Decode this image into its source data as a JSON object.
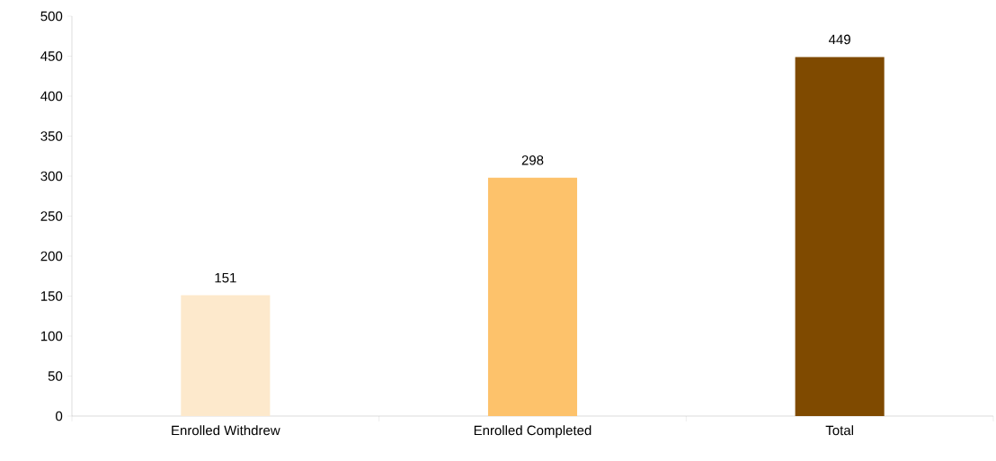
{
  "chart_data": {
    "type": "bar",
    "categories": [
      "Enrolled Withdrew",
      "Enrolled Completed",
      "Total"
    ],
    "values": [
      151,
      298,
      449
    ],
    "colors": [
      "#fde9cc",
      "#fdc26b",
      "#7f4a00"
    ],
    "value_labels": [
      "151",
      "298",
      "449"
    ],
    "ylim": [
      0,
      500
    ],
    "yticks": [
      0,
      50,
      100,
      150,
      200,
      250,
      300,
      350,
      400,
      450,
      500
    ],
    "grid": false
  }
}
